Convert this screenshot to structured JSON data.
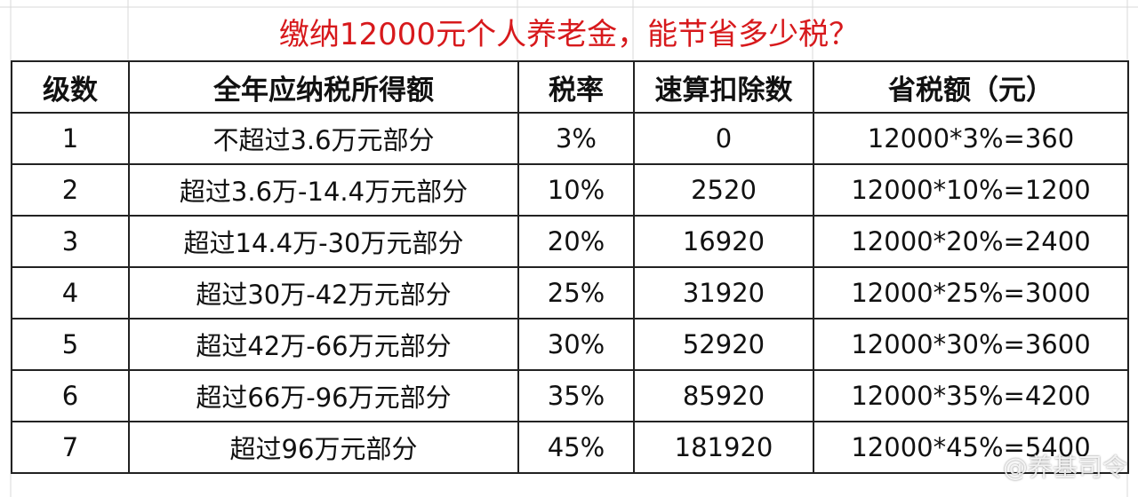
{
  "header": {
    "title": "缴纳12000元个人养老金，能节省多少税？"
  },
  "table": {
    "columns": [
      "级数",
      "全年应纳税所得额",
      "税率",
      "速算扣除数",
      "省税额（元）"
    ],
    "rows": [
      [
        "1",
        "不超过3.6万元部分",
        "3%",
        "0",
        "12000*3%=360"
      ],
      [
        "2",
        "超过3.6万-14.4万元部分",
        "10%",
        "2520",
        "12000*10%=1200"
      ],
      [
        "3",
        "超过14.4万-30万元部分",
        "20%",
        "16920",
        "12000*20%=2400"
      ],
      [
        "4",
        "超过30万-42万元部分",
        "25%",
        "31920",
        "12000*25%=3000"
      ],
      [
        "5",
        "超过42万-66万元部分",
        "30%",
        "52920",
        "12000*30%=3600"
      ],
      [
        "6",
        "超过66万-96万元部分",
        "35%",
        "85920",
        "12000*35%=4200"
      ],
      [
        "7",
        "超过96万元部分",
        "45%",
        "181920",
        "12000*45%=5400"
      ]
    ]
  },
  "watermark": "@养基司令"
}
